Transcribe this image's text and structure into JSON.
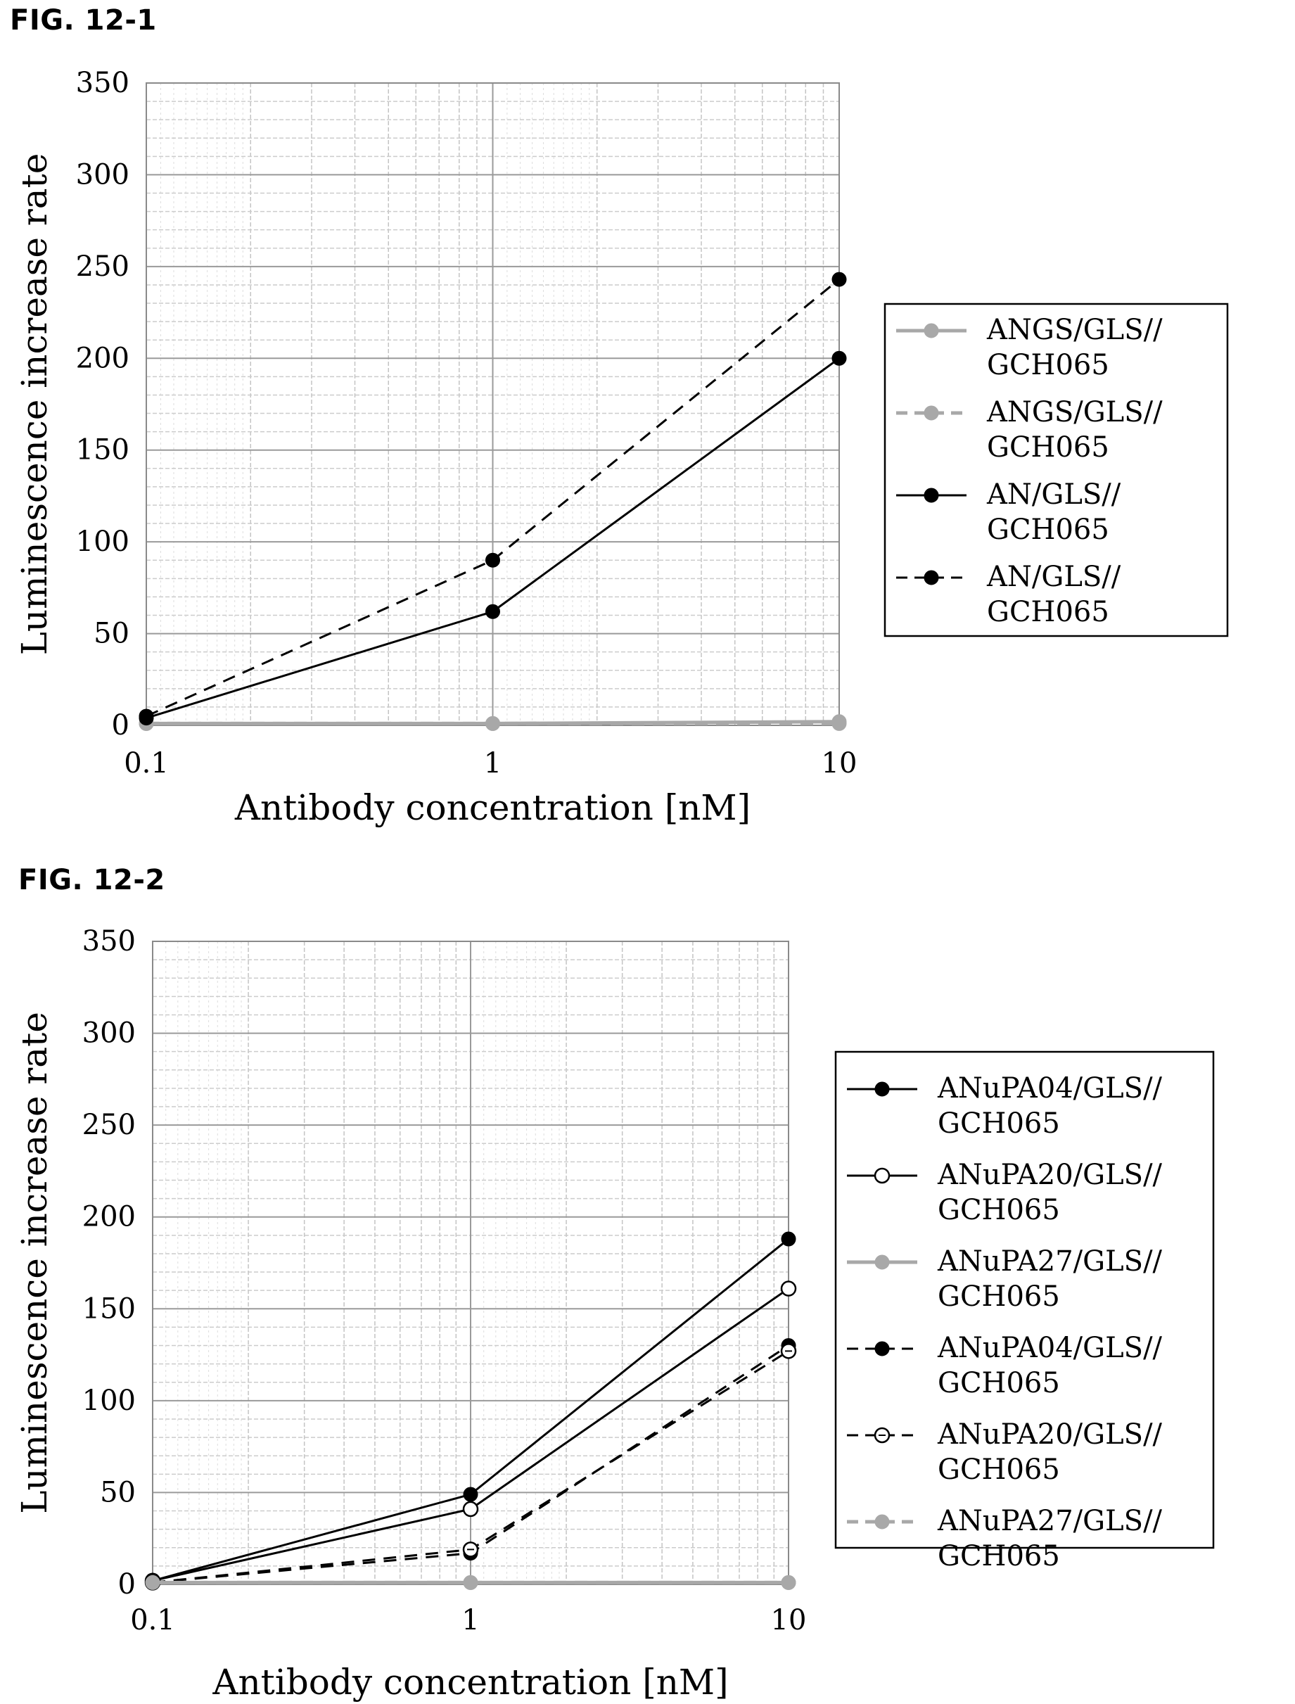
{
  "charts": [
    {
      "fig_label": "FIG. 12-1",
      "chart_data": {
        "type": "line",
        "x_scale": "log",
        "x": [
          0.1,
          1,
          10
        ],
        "xlim": [
          0.1,
          10
        ],
        "x_ticks": [
          "0.1",
          "1",
          "10"
        ],
        "ylim": [
          0,
          350
        ],
        "y_ticks": [
          0,
          50,
          100,
          150,
          200,
          250,
          300,
          350
        ],
        "xlabel": "Antibody concentration [nM]",
        "ylabel": "Luminescence increase rate",
        "grid": true,
        "legend_position": "right",
        "series": [
          {
            "name": "ANGS/GLS//GCH065",
            "legend_lines": [
              "ANGS/GLS//",
              "GCH065"
            ],
            "values": [
              1,
              1,
              2
            ],
            "style": "solid",
            "color": "#a8a8a8",
            "marker": "filled"
          },
          {
            "name": "ANGS/GLS//GCH065",
            "legend_lines": [
              "ANGS/GLS//",
              "GCH065"
            ],
            "values": [
              1,
              1,
              1
            ],
            "style": "dashed",
            "color": "#a8a8a8",
            "marker": "filled"
          },
          {
            "name": "AN/GLS//GCH065",
            "legend_lines": [
              "AN/GLS//",
              "GCH065"
            ],
            "values": [
              4,
              62,
              200
            ],
            "style": "solid",
            "color": "#000000",
            "marker": "filled"
          },
          {
            "name": "AN/GLS//GCH065",
            "legend_lines": [
              "AN/GLS//",
              "GCH065"
            ],
            "values": [
              5,
              90,
              243
            ],
            "style": "dashed",
            "color": "#000000",
            "marker": "filled"
          }
        ]
      }
    },
    {
      "fig_label": "FIG. 12-2",
      "chart_data": {
        "type": "line",
        "x_scale": "log",
        "x": [
          0.1,
          1,
          10
        ],
        "xlim": [
          0.1,
          10
        ],
        "x_ticks": [
          "0.1",
          "1",
          "10"
        ],
        "ylim": [
          0,
          350
        ],
        "y_ticks": [
          0,
          50,
          100,
          150,
          200,
          250,
          300,
          350
        ],
        "xlabel": "Antibody concentration [nM]",
        "ylabel": "Luminescence increase rate",
        "grid": true,
        "legend_position": "right",
        "series": [
          {
            "name": "ANuPA04/GLS//GCH065",
            "legend_lines": [
              "ANuPA04/GLS//",
              "GCH065"
            ],
            "values": [
              2,
              49,
              188
            ],
            "style": "solid",
            "color": "#000000",
            "marker": "filled"
          },
          {
            "name": "ANuPA20/GLS//GCH065",
            "legend_lines": [
              "ANuPA20/GLS//",
              "GCH065"
            ],
            "values": [
              2,
              41,
              161
            ],
            "style": "solid",
            "color": "#000000",
            "marker": "open"
          },
          {
            "name": "ANuPA27/GLS//GCH065",
            "legend_lines": [
              "ANuPA27/GLS//",
              "GCH065"
            ],
            "values": [
              1,
              1,
              1
            ],
            "style": "solid",
            "color": "#a8a8a8",
            "marker": "filled"
          },
          {
            "name": "ANuPA04/GLS//GCH065",
            "legend_lines": [
              "ANuPA04/GLS//",
              "GCH065"
            ],
            "values": [
              1,
              17,
              130
            ],
            "style": "dashed",
            "color": "#000000",
            "marker": "filled"
          },
          {
            "name": "ANuPA20/GLS//GCH065",
            "legend_lines": [
              "ANuPA20/GLS//",
              "GCH065"
            ],
            "values": [
              1,
              19,
              127
            ],
            "style": "dashed",
            "color": "#000000",
            "marker": "open-dot"
          },
          {
            "name": "ANuPA27/GLS//GCH065",
            "legend_lines": [
              "ANuPA27/GLS//",
              "GCH065"
            ],
            "values": [
              1,
              1,
              1
            ],
            "style": "dashed",
            "color": "#a8a8a8",
            "marker": "filled"
          }
        ]
      }
    }
  ]
}
